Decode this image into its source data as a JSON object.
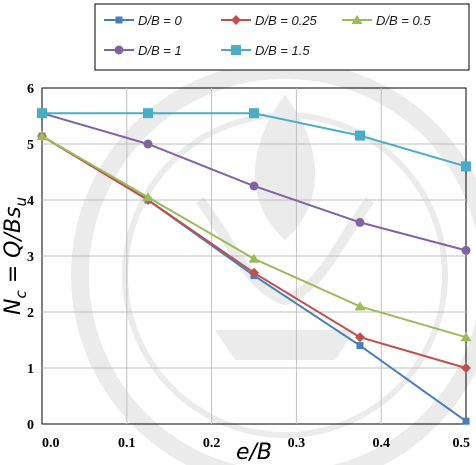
{
  "chart_data": {
    "type": "line",
    "xlabel": "e/B",
    "ylabel_main": "N",
    "ylabel_sub": "c",
    "ylabel_mid": " = Q/Bs",
    "ylabel_sub2": "u",
    "xlim": [
      0,
      0.5
    ],
    "ylim": [
      0,
      6
    ],
    "xticks": [
      "0.0",
      "0.1",
      "0.2",
      "0.3",
      "0.4",
      "0.5"
    ],
    "yticks": [
      "0",
      "1",
      "2",
      "3",
      "4",
      "5",
      "6"
    ],
    "grid": true,
    "legend_position": "top",
    "x": [
      0,
      0.125,
      0.25,
      0.375,
      0.5
    ],
    "series": [
      {
        "name": "D/B = 0",
        "color": "#4a7ebb",
        "marker": "square",
        "values": [
          5.14,
          4.0,
          2.65,
          1.4,
          0.05
        ]
      },
      {
        "name": "D/B = 0.25",
        "color": "#c0504d",
        "marker": "diamond",
        "values": [
          5.14,
          4.0,
          2.7,
          1.55,
          1.0
        ]
      },
      {
        "name": "D/B = 0.5",
        "color": "#9bbb59",
        "marker": "triangle",
        "values": [
          5.14,
          4.05,
          2.95,
          2.1,
          1.55
        ]
      },
      {
        "name": "D/B = 1",
        "color": "#8064a2",
        "marker": "circle",
        "values": [
          5.55,
          5.0,
          4.25,
          3.6,
          3.1
        ]
      },
      {
        "name": "D/B = 1.5",
        "color": "#4bacc6",
        "marker": "square-large",
        "values": [
          5.55,
          5.55,
          5.55,
          5.15,
          4.6
        ]
      }
    ]
  }
}
